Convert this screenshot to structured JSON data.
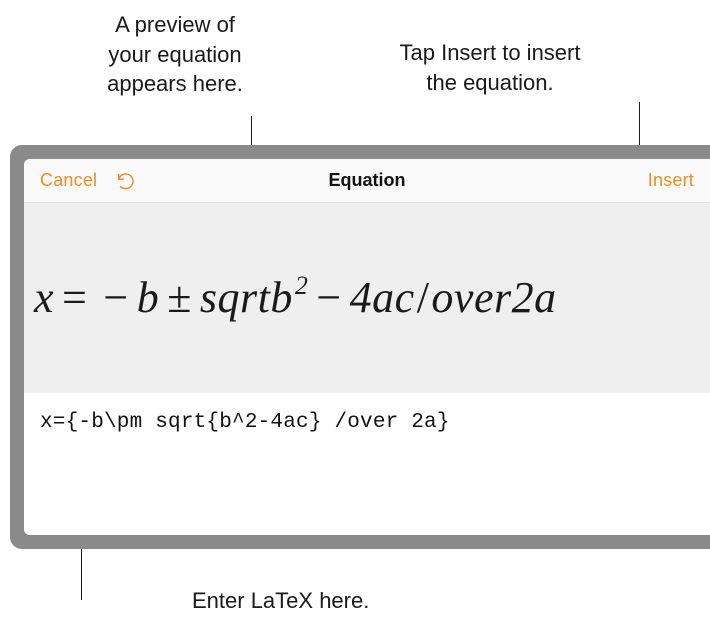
{
  "callouts": {
    "preview": "A preview of\nyour equation\nappears here.",
    "insert": "Tap Insert to insert\nthe equation.",
    "latex": "Enter LaTeX here."
  },
  "toolbar": {
    "cancel_label": "Cancel",
    "insert_label": "Insert",
    "title": "Equation",
    "accent_color": "#ee8d22"
  },
  "equation": {
    "preview_segments": {
      "x": "x",
      "eq": "=",
      "minus1": "−",
      "b": "b",
      "pm": "±",
      "sqrt": "sqrtb",
      "sup2": "2",
      "minus2": "−",
      "fourac": "4ac",
      "slash": "/",
      "over2a": "over2a"
    },
    "latex_source": "x={-b\\pm sqrt{b^2-4ac} /over 2a}"
  },
  "style": {
    "frame_color": "#8a8a8a",
    "preview_bg": "#efefef",
    "toolbar_bg": "#fafafa",
    "callout_fontsize": 22,
    "title_fontsize": 18,
    "action_fontsize": 18,
    "preview_fontsize": 44,
    "latex_fontsize": 21
  }
}
